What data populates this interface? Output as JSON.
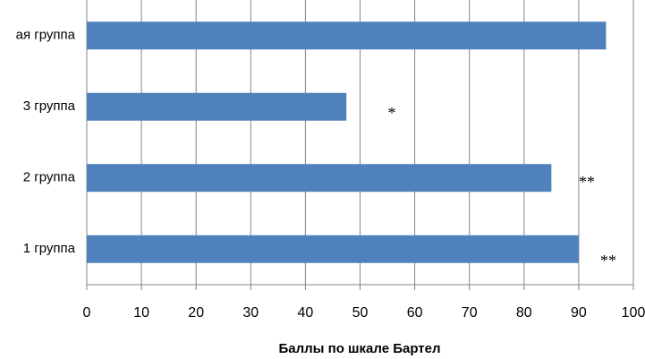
{
  "chart_data": {
    "type": "bar",
    "orientation": "horizontal",
    "x_label": "Баллы по шкале Бартел",
    "categories": [
      "ая группа",
      "3 группа",
      "2 группа",
      "1 группа"
    ],
    "values": [
      95,
      47.5,
      85,
      90
    ],
    "color": "#4f81bd",
    "xlim": [
      0,
      100
    ],
    "xticks": [
      0,
      10,
      20,
      30,
      40,
      50,
      60,
      70,
      80,
      90,
      100
    ],
    "grid": true,
    "annotations": [
      "*",
      "**",
      "**"
    ]
  }
}
